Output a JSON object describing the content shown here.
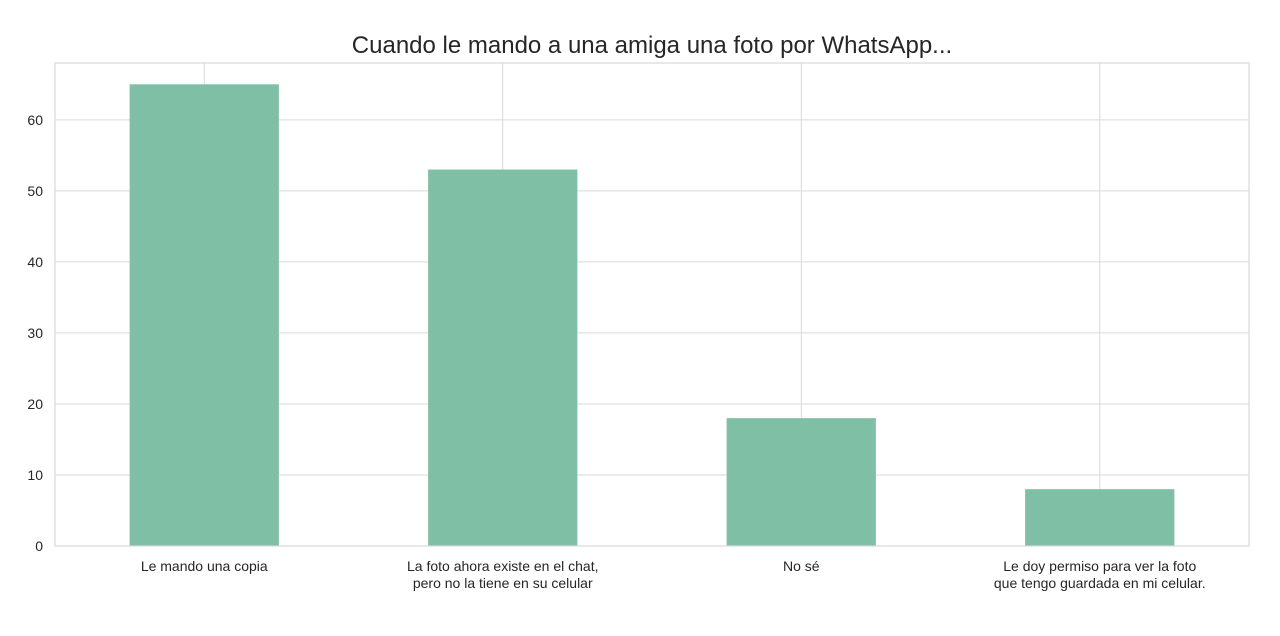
{
  "chart_data": {
    "type": "bar",
    "title": "Cuando le mando a una amiga una foto por WhatsApp...",
    "xlabel": "",
    "ylabel": "",
    "categories": [
      [
        "Le mando una copia"
      ],
      [
        "La foto ahora existe en el chat,",
        "pero no la tiene en su celular"
      ],
      [
        "No sé"
      ],
      [
        "Le doy permiso para ver la foto",
        "que tengo guardada en mi celular."
      ]
    ],
    "values": [
      65,
      53,
      18,
      8
    ],
    "ylim": [
      0,
      68
    ],
    "yticks": [
      0,
      10,
      20,
      30,
      40,
      50,
      60
    ],
    "grid": true,
    "legend": "none"
  },
  "colors": {
    "bar": "#7fbfa6",
    "grid": "#d9d9d9",
    "axes_edge": "#d9d9d9",
    "background": "#ffffff",
    "text": "#262626"
  }
}
